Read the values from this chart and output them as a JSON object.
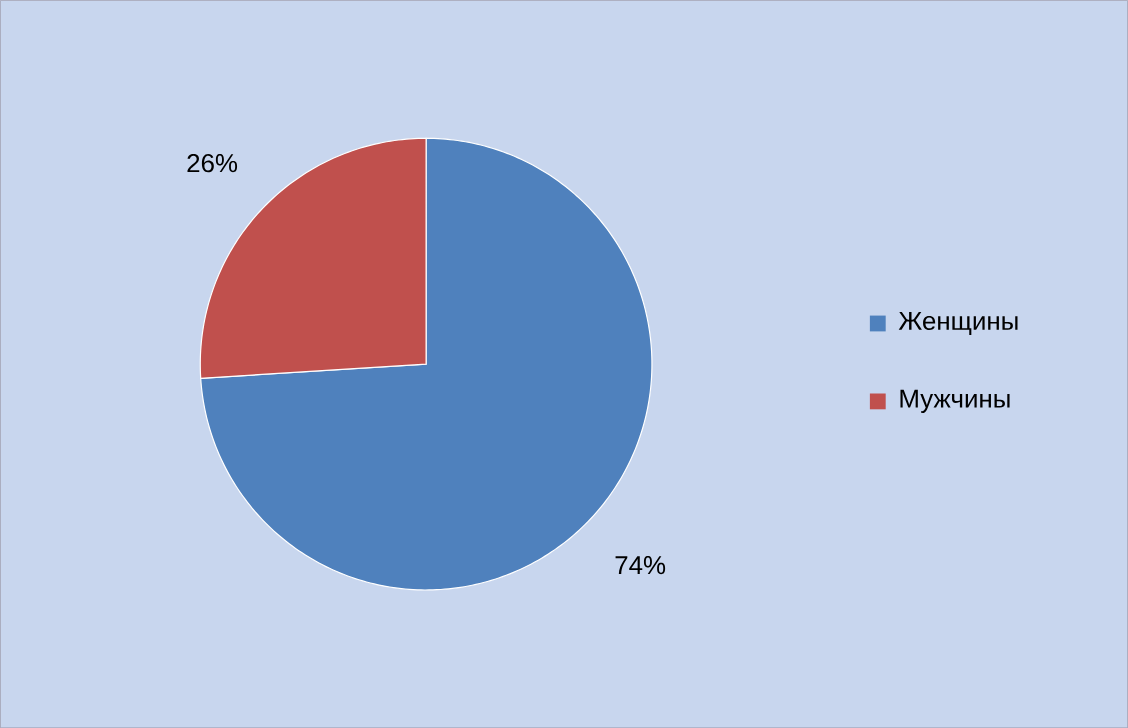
{
  "chart_data": {
    "type": "pie",
    "categories": [
      "Женщины",
      "Мужчины"
    ],
    "values": [
      74,
      26
    ],
    "colors": [
      "#4f81bd",
      "#c0504d"
    ],
    "value_labels": [
      "74%",
      "26%"
    ],
    "legend": "right"
  }
}
